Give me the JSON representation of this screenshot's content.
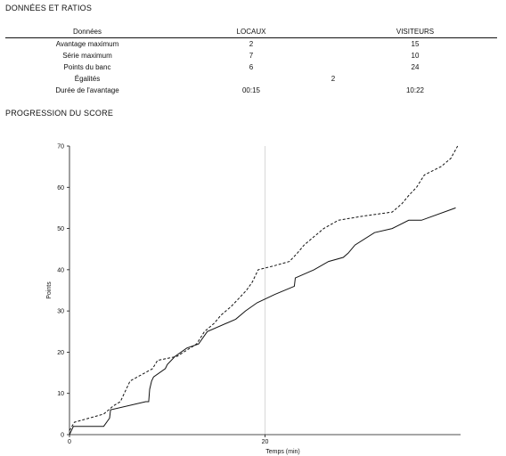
{
  "stats": {
    "title": "DONNÉES ET RATIOS",
    "headers": [
      "Données",
      "LOCAUX",
      "VISITEURS"
    ],
    "rows": [
      {
        "label": "Avantage maximum",
        "home": "2",
        "away": "15"
      },
      {
        "label": "Série maximum",
        "home": "7",
        "away": "10"
      },
      {
        "label": "Points du banc",
        "home": "6",
        "away": "24"
      },
      {
        "label": "Égalités",
        "shared": "2"
      },
      {
        "label": "Durée de l'avantage",
        "home": "00:15",
        "away": "10:22"
      }
    ]
  },
  "chart_title": "PROGRESSION DU SCORE",
  "chart_data": {
    "type": "line",
    "title": "",
    "xlabel": "Temps (min)",
    "ylabel": "Points",
    "xlim": [
      0,
      40
    ],
    "ylim": [
      0,
      70
    ],
    "xticks": [
      0,
      20
    ],
    "yticks": [
      0,
      10,
      20,
      30,
      40,
      50,
      60,
      70
    ],
    "grid": "vertical line at x=20",
    "legend": "none",
    "series": [
      {
        "style": "solid",
        "color": "#111111",
        "x": [
          0,
          0.4,
          3.5,
          4.1,
          4.2,
          7.8,
          8.1,
          8.2,
          8.4,
          8.6,
          9.8,
          10.0,
          10.8,
          12.0,
          13.2,
          14.1,
          17.0,
          18.0,
          19.2,
          21.0,
          23.0,
          23.1,
          25.0,
          26.5,
          28.0,
          28.5,
          29.2,
          31.2,
          33.0,
          34.7,
          36.0,
          39.5
        ],
        "y": [
          0,
          2,
          2,
          4,
          6,
          8,
          8,
          11,
          13,
          14,
          16,
          17,
          19,
          21,
          22,
          25,
          28,
          30,
          32,
          34,
          36,
          38,
          40,
          42,
          43,
          44,
          46,
          49,
          50,
          52,
          52,
          55
        ]
      },
      {
        "style": "dashed",
        "color": "#111111",
        "x": [
          0,
          0.5,
          2.0,
          3.5,
          4.5,
          5.2,
          5.6,
          6.2,
          8.5,
          9.0,
          11.0,
          13.0,
          13.8,
          14.8,
          15.5,
          16.5,
          17.3,
          18.1,
          18.7,
          19.3,
          21.0,
          22.5,
          23.3,
          24.0,
          25.0,
          26.0,
          27.5,
          30.0,
          33.0,
          34.0,
          34.7,
          35.5,
          36.3,
          38.0,
          39.0,
          39.7
        ],
        "y": [
          1,
          3,
          4,
          5,
          7,
          8,
          10,
          13,
          16,
          18,
          19,
          22,
          25,
          27,
          29,
          31,
          33,
          35,
          37,
          40,
          41,
          42,
          44,
          46,
          48,
          50,
          52,
          53,
          54,
          56,
          58,
          60,
          63,
          65,
          67,
          70
        ]
      }
    ]
  }
}
